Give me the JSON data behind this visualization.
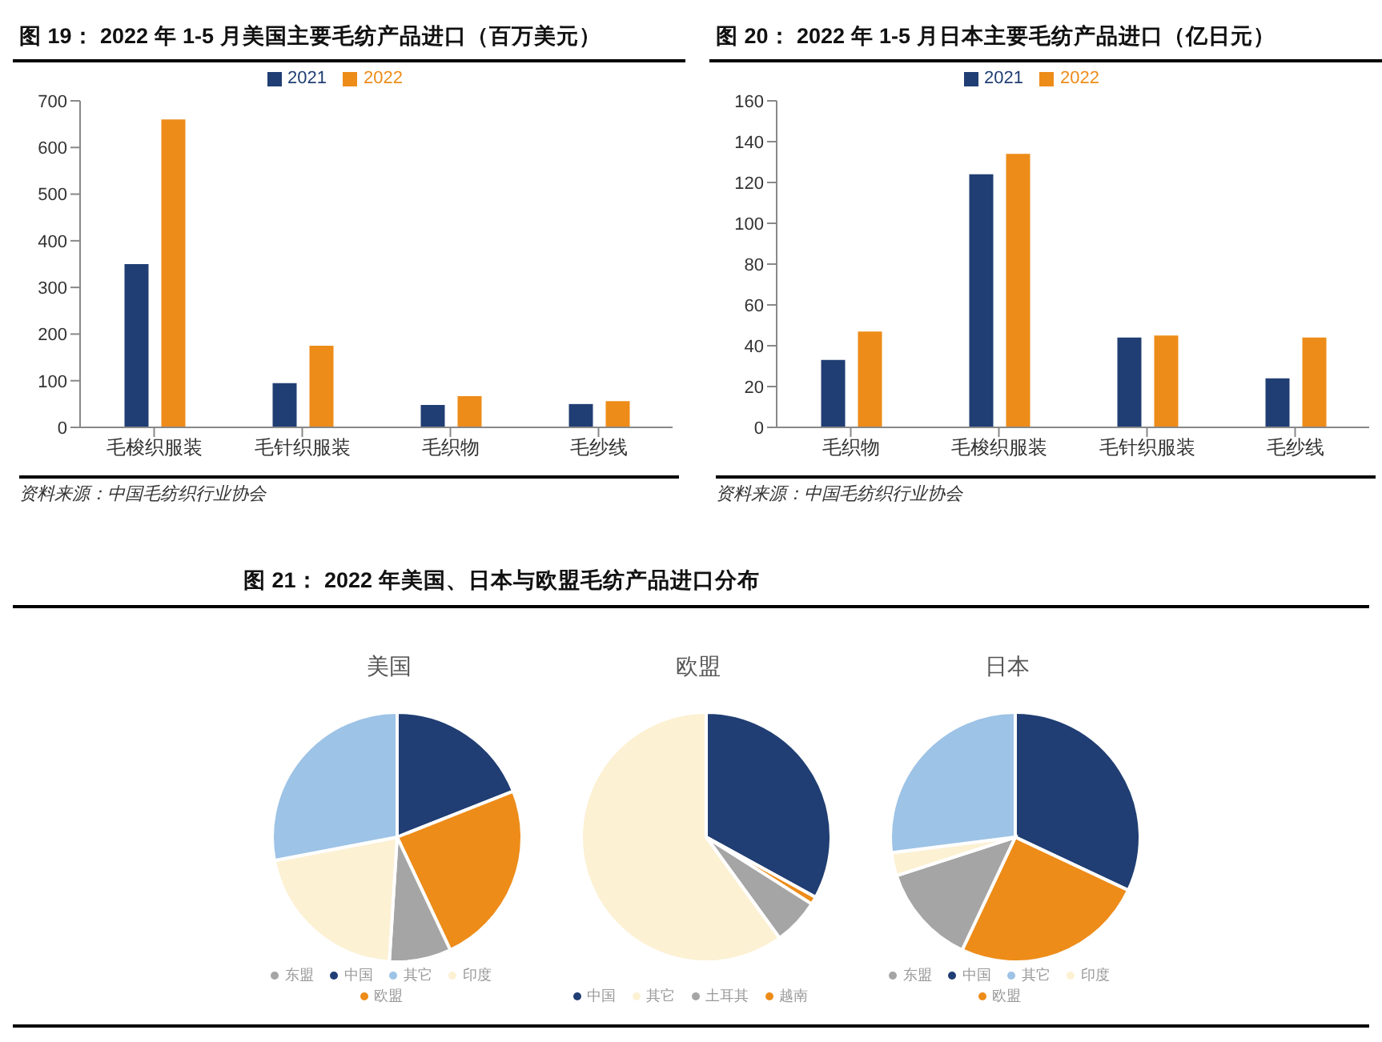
{
  "chart_data": [
    {
      "type": "bar",
      "title": "图 19：  2022 年 1-5 月美国主要毛纺产品进口（百万美元）",
      "categories": [
        "毛梭织服装",
        "毛针织服装",
        "毛织物",
        "毛纱线"
      ],
      "series": [
        {
          "name": "2021",
          "color": "#203e73",
          "values": [
            350,
            95,
            48,
            50
          ]
        },
        {
          "name": "2022",
          "color": "#ed8c19",
          "values": [
            660,
            175,
            67,
            56
          ]
        }
      ],
      "ylim": [
        0,
        700
      ],
      "yticks": [
        0,
        100,
        200,
        300,
        400,
        500,
        600,
        700
      ],
      "legend": "top",
      "annotations": [
        "资料来源：中国毛纺织行业协会"
      ]
    },
    {
      "type": "bar",
      "title": "图 20：  2022 年 1-5 月日本主要毛纺产品进口（亿日元）",
      "categories": [
        "毛织物",
        "毛梭织服装",
        "毛针织服装",
        "毛纱线"
      ],
      "series": [
        {
          "name": "2021",
          "color": "#203e73",
          "values": [
            33,
            124,
            44,
            24
          ]
        },
        {
          "name": "2022",
          "color": "#ed8c19",
          "values": [
            47,
            134,
            45,
            44
          ]
        }
      ],
      "ylim": [
        0,
        160
      ],
      "yticks": [
        0,
        20,
        40,
        60,
        80,
        100,
        120,
        140,
        160
      ],
      "legend": "top",
      "annotations": [
        "资料来源：中国毛纺织行业协会"
      ]
    },
    {
      "type": "pie",
      "title": "图 21：  2022 年美国、日本与欧盟毛纺产品进口分布",
      "subtitle": "美国",
      "categories": [
        "中国",
        "欧盟",
        "东盟",
        "印度",
        "其它"
      ],
      "values": [
        19,
        24,
        8,
        21,
        28
      ],
      "colors": [
        "#203e73",
        "#ed8c19",
        "#a5a5a5",
        "#fdf1d4",
        "#9dc3e6"
      ],
      "legend": "bottom"
    },
    {
      "type": "pie",
      "title": "欧盟",
      "categories": [
        "中国",
        "越南",
        "土耳其",
        "其它"
      ],
      "values": [
        33,
        1,
        6,
        60
      ],
      "colors": [
        "#203e73",
        "#ed8c19",
        "#a5a5a5",
        "#fdf1d4"
      ],
      "legend": "bottom"
    },
    {
      "type": "pie",
      "title": "日本",
      "categories": [
        "中国",
        "欧盟",
        "东盟",
        "印度",
        "其它"
      ],
      "values": [
        32,
        25,
        13,
        3,
        27
      ],
      "colors": [
        "#203e73",
        "#ed8c19",
        "#a5a5a5",
        "#fdf1d4",
        "#9dc3e6"
      ],
      "legend": "bottom"
    }
  ]
}
